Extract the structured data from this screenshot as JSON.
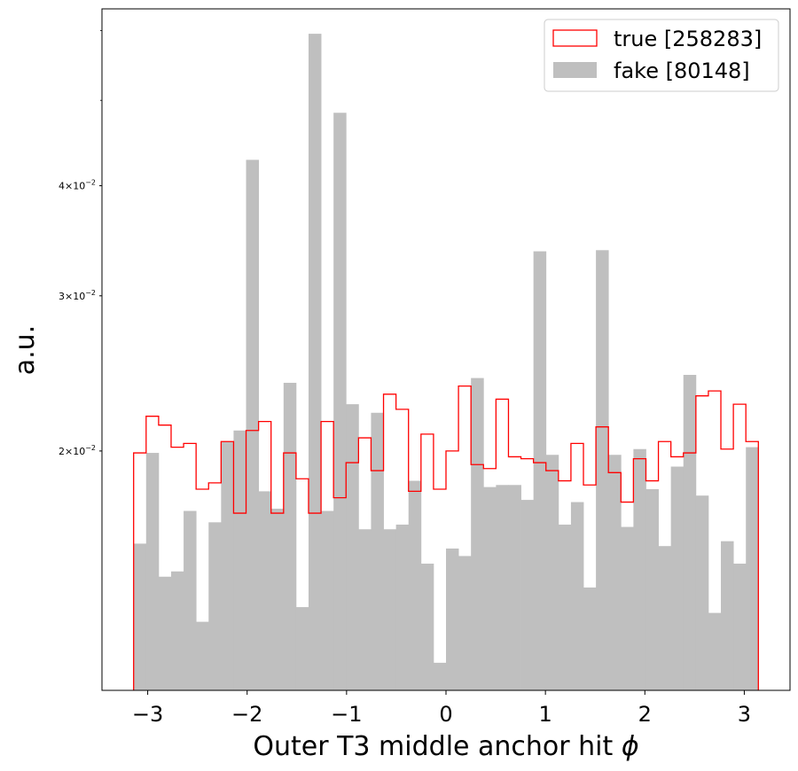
{
  "chart_data": {
    "type": "histogram",
    "xlabel": "Outer T3 middle anchor hit ϕ",
    "ylabel": "a.u.",
    "yscale": "log",
    "xlim": [
      -3.46,
      3.46
    ],
    "ylim": [
      0.0107,
      0.0635
    ],
    "x_ticks": [
      {
        "value": -3,
        "label": "−3"
      },
      {
        "value": -2,
        "label": "−2"
      },
      {
        "value": -1,
        "label": "−1"
      },
      {
        "value": 0,
        "label": "0"
      },
      {
        "value": 1,
        "label": "1"
      },
      {
        "value": 2,
        "label": "2"
      },
      {
        "value": 3,
        "label": "3"
      }
    ],
    "y_ticks": [
      {
        "value": 0.02,
        "mantissa": "2",
        "exponent": "−2"
      },
      {
        "value": 0.03,
        "mantissa": "3",
        "exponent": "−2"
      },
      {
        "value": 0.04,
        "mantissa": "4",
        "exponent": "−2"
      }
    ],
    "y_minor_ticks": [
      0.05,
      0.06
    ],
    "bin_range": [
      -3.1416,
      3.1416
    ],
    "legend": {
      "position": "upper right"
    },
    "series": [
      {
        "name": "true [258283]",
        "style": "step",
        "color": "#ff0000",
        "values": [
          0.0199,
          0.0219,
          0.0214,
          0.0202,
          0.0204,
          0.0181,
          0.0184,
          0.0205,
          0.017,
          0.0211,
          0.0216,
          0.017,
          0.0199,
          0.0186,
          0.017,
          0.0216,
          0.0177,
          0.0194,
          0.0207,
          0.019,
          0.0232,
          0.0223,
          0.018,
          0.0209,
          0.0181,
          0.02,
          0.0237,
          0.0193,
          0.0191,
          0.0229,
          0.0197,
          0.0196,
          0.0194,
          0.019,
          0.0185,
          0.0204,
          0.0183,
          0.0213,
          0.0189,
          0.0175,
          0.0196,
          0.0185,
          0.0205,
          0.0197,
          0.0199,
          0.0231,
          0.0234,
          0.0201,
          0.0226,
          0.0205
        ]
      },
      {
        "name": "fake [80148]",
        "style": "filled",
        "color": "#bfbfbf",
        "values": [
          0.0157,
          0.0199,
          0.0144,
          0.0146,
          0.0171,
          0.0128,
          0.0166,
          0.0205,
          0.0211,
          0.0428,
          0.018,
          0.0172,
          0.0239,
          0.0133,
          0.0595,
          0.0171,
          0.0484,
          0.0226,
          0.0163,
          0.0221,
          0.0163,
          0.0165,
          0.0185,
          0.0149,
          0.0115,
          0.0155,
          0.0152,
          0.0242,
          0.0182,
          0.0183,
          0.0183,
          0.0176,
          0.0337,
          0.0198,
          0.0165,
          0.0175,
          0.014,
          0.0338,
          0.0198,
          0.0164,
          0.0201,
          0.0181,
          0.0156,
          0.0192,
          0.0244,
          0.0178,
          0.0131,
          0.0158,
          0.0149,
          0.0202
        ]
      }
    ]
  }
}
